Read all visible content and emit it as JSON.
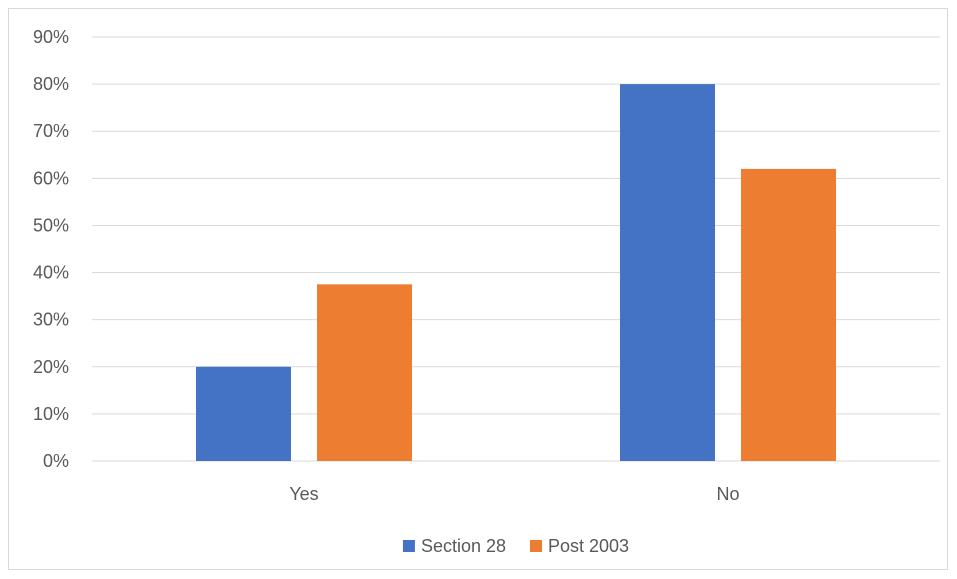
{
  "chart_data": {
    "type": "bar",
    "categories": [
      "Yes",
      "No"
    ],
    "series": [
      {
        "name": "Section 28",
        "values": [
          0.2,
          0.8
        ],
        "color": "#4472C4"
      },
      {
        "name": "Post 2003",
        "values": [
          0.375,
          0.62
        ],
        "color": "#ED7D31"
      }
    ],
    "ylim": [
      0,
      0.9
    ],
    "yticks": [
      0,
      0.1,
      0.2,
      0.3,
      0.4,
      0.5,
      0.6,
      0.7,
      0.8,
      0.9
    ],
    "ytick_labels": [
      "0%",
      "10%",
      "20%",
      "30%",
      "40%",
      "50%",
      "60%",
      "70%",
      "80%",
      "90%"
    ],
    "grid": true,
    "legend": "bottom-center",
    "title": "",
    "xlabel": "",
    "ylabel": ""
  }
}
